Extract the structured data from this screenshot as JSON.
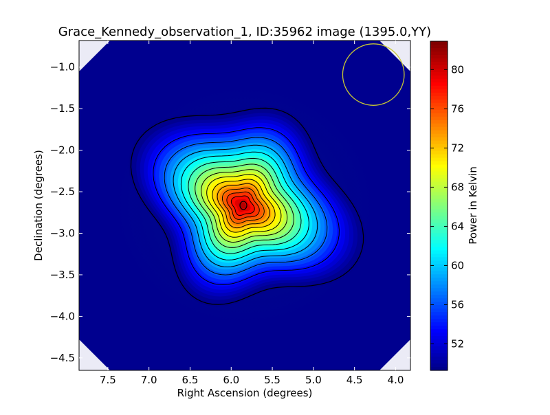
{
  "chart_data": {
    "type": "heatmap",
    "title": "Grace_Kennedy_observation_1, ID:35962 image (1395.0,YY)",
    "xlabel": "Right Ascension (degrees)",
    "ylabel": "Declination (degrees)",
    "x_reversed": true,
    "xlim": [
      7.85,
      3.82
    ],
    "ylim": [
      -4.65,
      -0.68
    ],
    "xticks": [
      7.5,
      7.0,
      6.5,
      6.0,
      5.5,
      5.0,
      4.5,
      4.0
    ],
    "xtick_labels": [
      "7.5",
      "7.0",
      "6.5",
      "6.0",
      "5.5",
      "5.0",
      "4.5",
      "4.0"
    ],
    "yticks": [
      -1.0,
      -1.5,
      -2.0,
      -2.5,
      -3.0,
      -3.5,
      -4.0,
      -4.5
    ],
    "ytick_labels": [
      "−1.0",
      "−1.5",
      "−2.0",
      "−2.5",
      "−3.0",
      "−3.5",
      "−4.0",
      "−4.5"
    ],
    "colorbar": {
      "label": "Power in Kelvin",
      "range": [
        49.3,
        82.9
      ],
      "ticks": [
        52,
        56,
        60,
        64,
        68,
        72,
        76,
        80
      ],
      "tick_labels": [
        "52",
        "56",
        "60",
        "64",
        "68",
        "72",
        "76",
        "80"
      ],
      "colormap": "jet"
    },
    "source": {
      "center_ra": 5.83,
      "center_dec": -2.65,
      "peak_kelvin": 82.5,
      "background_kelvin": 49.4,
      "contour_count": 14
    },
    "beam_circle": {
      "center_ra": 4.27,
      "center_dec": -1.09,
      "radius_deg": 0.37,
      "color": "#c8c832"
    },
    "colors": {
      "contour": "#000000",
      "frame": "#000000",
      "corner_mask": "#ffffff"
    }
  }
}
